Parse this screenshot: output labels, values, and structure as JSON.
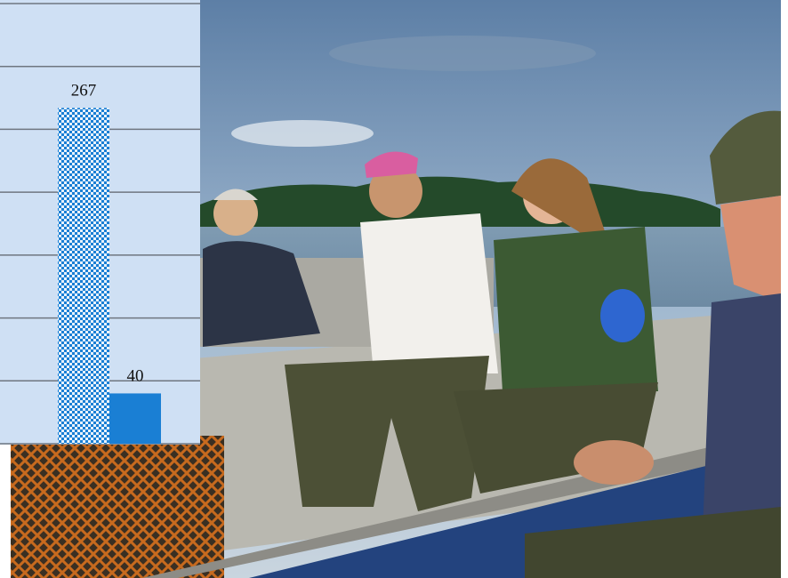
{
  "chart_data": {
    "type": "bar",
    "categories": [
      null,
      null
    ],
    "values": [
      267,
      40
    ],
    "colors": [
      "#1a7fd4",
      "#1a7fd4"
    ],
    "bar_styles": [
      "checkered",
      "solid"
    ],
    "ylim": [
      0,
      350
    ],
    "yticks": [
      0,
      50,
      100,
      150,
      200,
      250,
      300,
      350
    ],
    "grid": true
  }
}
